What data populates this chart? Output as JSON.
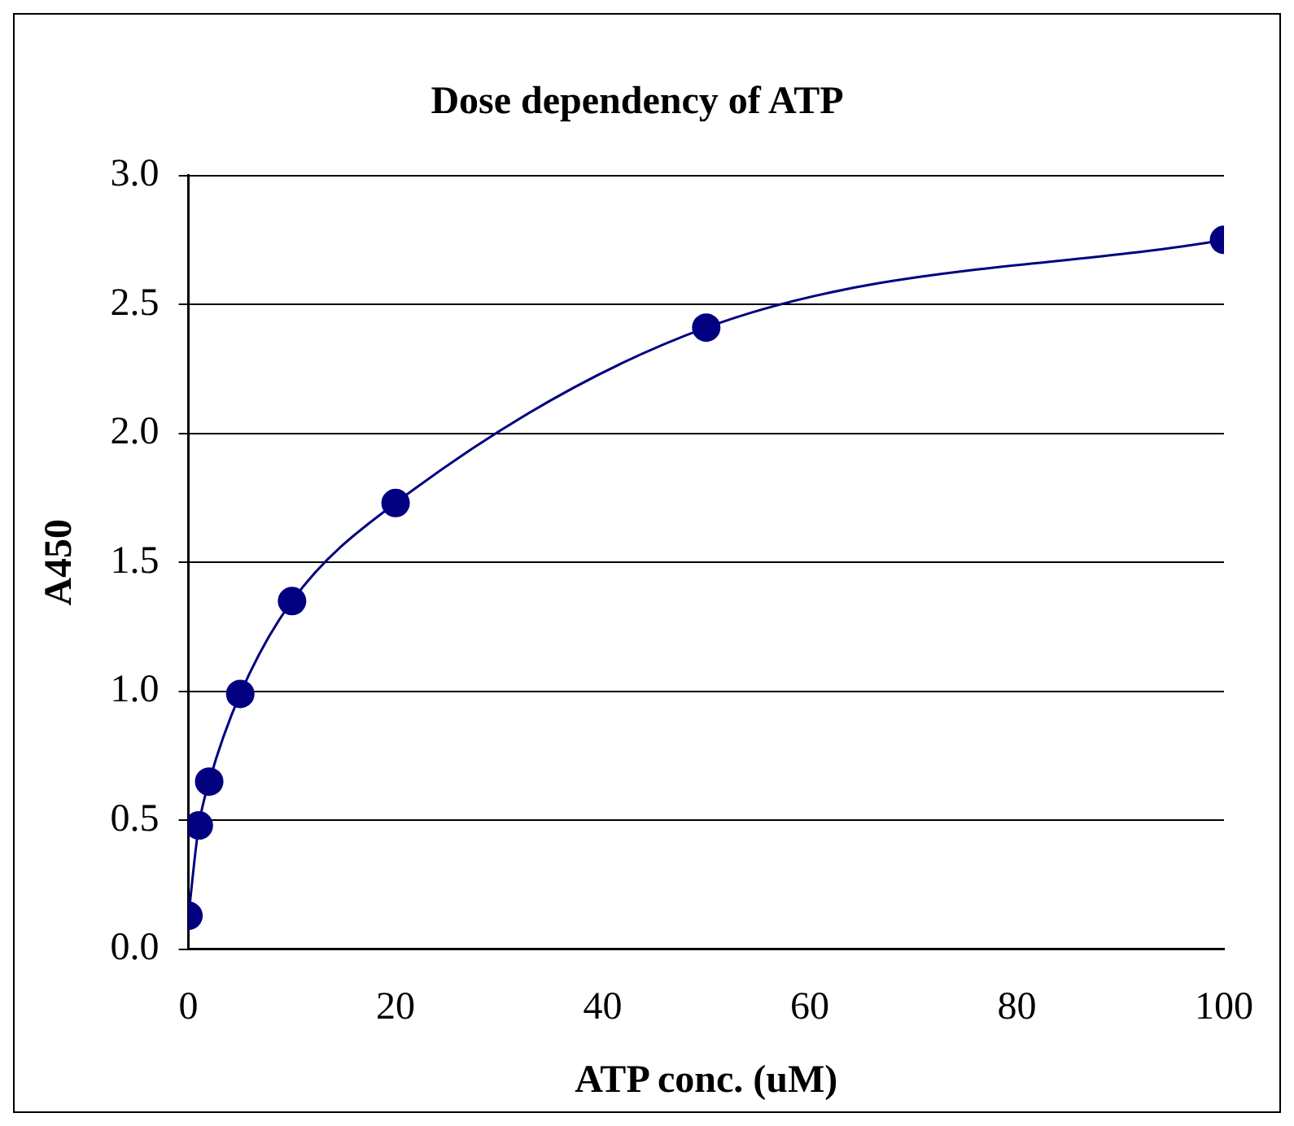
{
  "chart_data": {
    "type": "line",
    "title": "Dose dependency of ATP",
    "xlabel": "ATP conc. (uM)",
    "ylabel": "A450",
    "x": [
      0,
      1,
      2,
      5,
      10,
      20,
      50,
      100
    ],
    "series": [
      {
        "color": "#000080",
        "values": [
          0.13,
          0.48,
          0.65,
          0.99,
          1.35,
          1.73,
          2.41,
          2.75
        ]
      }
    ],
    "xlim": [
      0,
      100
    ],
    "xticks": [
      0,
      20,
      40,
      60,
      80,
      100
    ],
    "ylim": [
      0,
      3
    ],
    "yticks": [
      {
        "value": 0,
        "label": "0.0"
      },
      {
        "value": 0.5,
        "label": "0.5"
      },
      {
        "value": 1,
        "label": "1.0"
      },
      {
        "value": 1.5,
        "label": "1.5"
      },
      {
        "value": 2,
        "label": "2.0"
      },
      {
        "value": 2.5,
        "label": "2.5"
      },
      {
        "value": 3,
        "label": "3.0"
      }
    ],
    "grid": "y",
    "legend": false,
    "marker": "circle",
    "line_style": "solid"
  }
}
